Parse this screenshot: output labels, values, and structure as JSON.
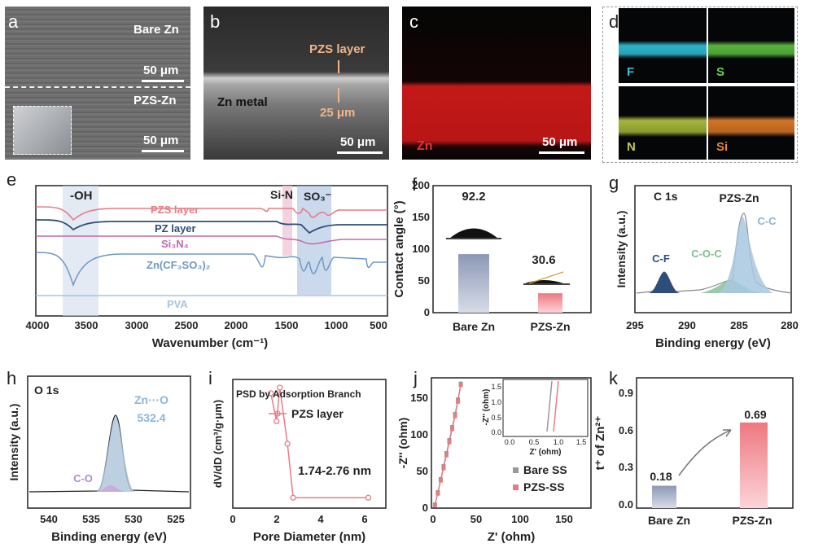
{
  "panels": {
    "a": {
      "label": "a",
      "top_text": "Bare Zn",
      "top_scale": "50 μm",
      "bottom_text": "PZS-Zn",
      "bottom_scale": "50 μm"
    },
    "b": {
      "label": "b",
      "layer_text": "PZS  layer",
      "metal_text": "Zn metal",
      "thickness_text": "25 μm",
      "scale": "50 μm"
    },
    "c": {
      "label": "c",
      "element": "Zn",
      "scale": "50 μm"
    },
    "d": {
      "label": "d",
      "elements": [
        "F",
        "S",
        "N",
        "Si"
      ]
    },
    "e": {
      "label": "e",
      "xlabel": "Wavenumber (cm⁻¹)",
      "xticks": [
        "4000",
        "3500",
        "3000",
        "2500",
        "2000",
        "1500",
        "1000",
        "500"
      ],
      "band_oh": "-OH",
      "band_sin": "Si-N",
      "band_so3": "SO₃⁻",
      "traces": [
        "PZS layer",
        "PZ layer",
        "Si₃N₄",
        "Zn(CF₃SO₃)₂",
        "PVA"
      ]
    },
    "f": {
      "label": "f",
      "ylabel": "Contact angle (°)",
      "yticks": [
        "0",
        "50",
        "100",
        "150",
        "200"
      ],
      "xticks": [
        "Bare Zn",
        "PZS-Zn"
      ],
      "value_labels": [
        "92.2",
        "30.6"
      ]
    },
    "g": {
      "label": "g",
      "title": "C 1s",
      "sample": "PZS-Zn",
      "ylabel": "Intensity (a.u.)",
      "xlabel": "Binding energy (eV)",
      "xticks": [
        "295",
        "290",
        "285",
        "280"
      ],
      "peaks": [
        "C-F",
        "C-O-C",
        "C-C"
      ]
    },
    "h": {
      "label": "h",
      "title": "O 1s",
      "ylabel": "Intensity (a.u.)",
      "xlabel": "Binding energy (eV)",
      "xticks": [
        "540",
        "535",
        "530",
        "525"
      ],
      "peak1": "Zn···O",
      "peak1_value": "532.4",
      "peak2": "C-O"
    },
    "i": {
      "label": "i",
      "title": "PSD by Adsorption Branch",
      "legend": "PZS layer",
      "ylabel": "dV/dD (cm³/g·μm)",
      "xlabel": "Pore Diameter (nm)",
      "xticks": [
        "0",
        "2",
        "4",
        "6"
      ],
      "annotation": "1.74-2.76 nm"
    },
    "j": {
      "label": "j",
      "ylabel": "-Z'' (ohm)",
      "xlabel": "Z' (ohm)",
      "xticks": [
        "0",
        "50",
        "100",
        "150"
      ],
      "yticks": [
        "0",
        "50",
        "100",
        "150"
      ],
      "legend": [
        "Bare SS",
        "PZS-SS"
      ],
      "inset_xlabel": "Z' (ohm)",
      "inset_ylabel": "-Z'' (ohm)",
      "inset_xticks": [
        "0.0",
        "0.5",
        "1.0",
        "1.5"
      ],
      "inset_yticks": [
        "0.0",
        "0.5",
        "1.0",
        "1.5"
      ]
    },
    "k": {
      "label": "k",
      "ylabel": "t⁺ of Zn²⁺",
      "yticks": [
        "0.0",
        "0.3",
        "0.6",
        "0.9"
      ],
      "xticks": [
        "Bare Zn",
        "PZS-Zn"
      ],
      "value_labels": [
        "0.18",
        "0.69"
      ]
    }
  },
  "chart_data": [
    {
      "type": "bar",
      "panel": "f",
      "categories": [
        "Bare Zn",
        "PZS-Zn"
      ],
      "values": [
        92.2,
        30.6
      ],
      "ylabel": "Contact angle (°)",
      "ylim": [
        0,
        200
      ]
    },
    {
      "type": "bar",
      "panel": "k",
      "categories": [
        "Bare Zn",
        "PZS-Zn"
      ],
      "values": [
        0.18,
        0.69
      ],
      "ylabel": "t⁺ of Zn²⁺",
      "ylim": [
        0,
        1.05
      ]
    },
    {
      "type": "line",
      "panel": "i",
      "series": [
        {
          "name": "PZS layer",
          "x": [
            1.74,
            2.0,
            2.15,
            2.5,
            2.76,
            6.2
          ],
          "y": [
            0.95,
            0.7,
            1.0,
            0.5,
            0.02,
            0.02
          ]
        }
      ],
      "xlabel": "Pore Diameter (nm)",
      "xlim": [
        0,
        7
      ]
    },
    {
      "type": "scatter",
      "panel": "j",
      "series": [
        {
          "name": "Bare SS",
          "x": [
            2,
            5,
            8,
            11,
            14,
            17,
            20,
            23,
            26,
            29
          ],
          "y": [
            5,
            22,
            40,
            58,
            76,
            94,
            112,
            130,
            150,
            172
          ]
        },
        {
          "name": "PZS-SS",
          "x": [
            2,
            5,
            8,
            11,
            14,
            17,
            20,
            23,
            26,
            29
          ],
          "y": [
            4,
            20,
            38,
            55,
            73,
            91,
            109,
            127,
            147,
            170
          ]
        }
      ],
      "xlabel": "Z' (ohm)",
      "ylabel": "-Z'' (ohm)",
      "xlim": [
        0,
        165
      ],
      "ylim": [
        0,
        180
      ]
    }
  ],
  "colors": {
    "red_map": "#c41818",
    "pzs_trace": "#e87c84",
    "pz_trace": "#2d4e7a",
    "si3n4_trace": "#c06aa8",
    "znotf_trace": "#6c98c6",
    "pva_trace": "#a8c4e0",
    "bar_pzs": "#ee7880",
    "bar_bare": "#8c98b6"
  }
}
